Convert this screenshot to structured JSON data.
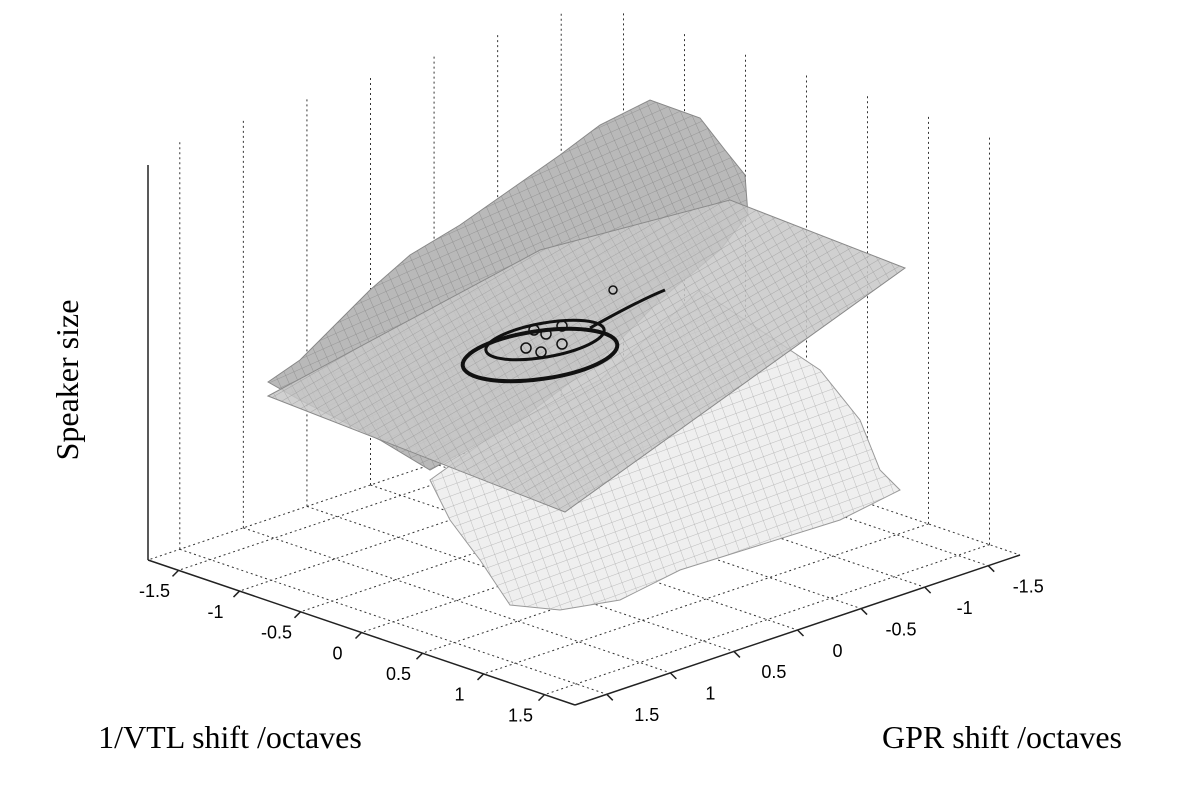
{
  "chart_data": {
    "type": "surface3d",
    "xlabel": "1/VTL shift /octaves",
    "ylabel": "GPR shift /octaves",
    "zlabel": "Speaker size",
    "xlim": [
      -1.75,
      1.75
    ],
    "ylim": [
      -1.75,
      1.75
    ],
    "xticks": [
      -1.5,
      -1,
      -0.5,
      0,
      0.5,
      1,
      1.5
    ],
    "yticks": [
      -1.5,
      -1,
      -0.5,
      0,
      0.5,
      1,
      1.5
    ],
    "grid": true
  }
}
